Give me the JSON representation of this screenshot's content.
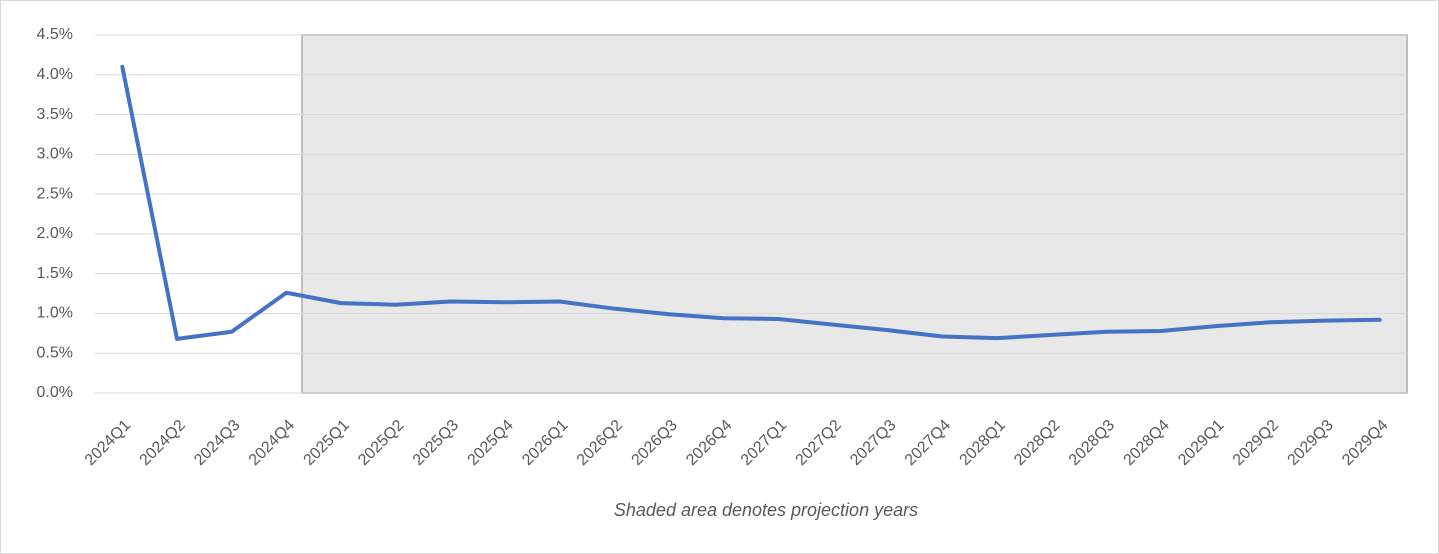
{
  "chart_data": {
    "type": "line",
    "annotation": "Shaded area denotes projection years",
    "categories": [
      "2024Q1",
      "2024Q2",
      "2024Q3",
      "2024Q4",
      "2025Q1",
      "2025Q2",
      "2025Q3",
      "2025Q4",
      "2026Q1",
      "2026Q2",
      "2026Q3",
      "2026Q4",
      "2027Q1",
      "2027Q2",
      "2027Q3",
      "2027Q4",
      "2028Q1",
      "2028Q2",
      "2028Q3",
      "2028Q4",
      "2029Q1",
      "2029Q2",
      "2029Q3",
      "2029Q4"
    ],
    "values": [
      4.1,
      0.68,
      0.77,
      1.26,
      1.13,
      1.11,
      1.15,
      1.14,
      1.15,
      1.06,
      0.99,
      0.94,
      0.93,
      0.86,
      0.79,
      0.71,
      0.69,
      0.73,
      0.77,
      0.78,
      0.84,
      0.89,
      0.91,
      0.92
    ],
    "color": "#4472c4",
    "ylim": [
      0,
      4.5
    ],
    "yticks": [
      {
        "value": 0,
        "label": "0.0%"
      },
      {
        "value": 0.5,
        "label": "0.5%"
      },
      {
        "value": 1,
        "label": "1.0%"
      },
      {
        "value": 1.5,
        "label": "1.5%"
      },
      {
        "value": 2,
        "label": "2.0%"
      },
      {
        "value": 2.5,
        "label": "2.5%"
      },
      {
        "value": 3,
        "label": "3.0%"
      },
      {
        "value": 3.5,
        "label": "3.5%"
      },
      {
        "value": 4,
        "label": "4.0%"
      },
      {
        "value": 4.5,
        "label": "4.5%"
      }
    ],
    "grid": true
  }
}
